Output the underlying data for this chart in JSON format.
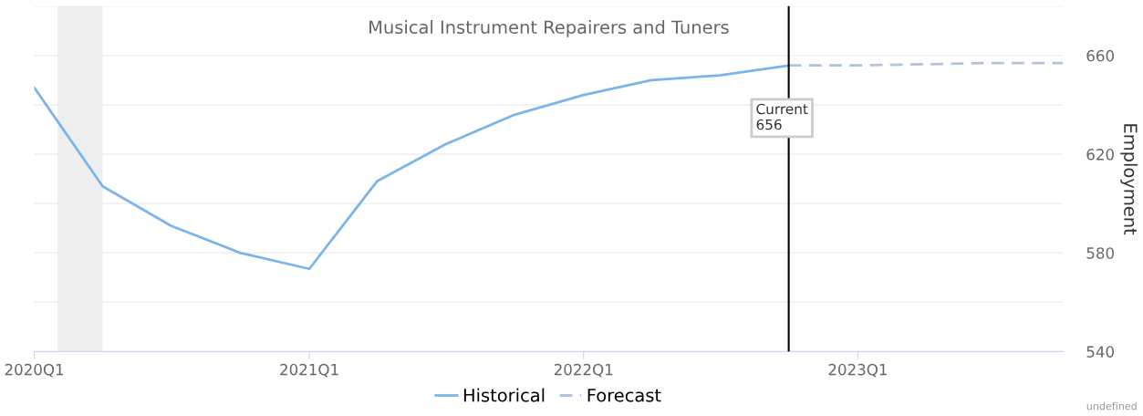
{
  "chart_data": {
    "type": "line",
    "title": "Musical Instrument Repairers and Tuners",
    "ylabel": "Employment",
    "series": [
      {
        "name": "Historical",
        "color": "#7cb5ec",
        "line_style": "solid",
        "x": [
          "2020-01-01",
          "2020-04-01",
          "2020-07-01",
          "2020-10-01",
          "2021-01-01",
          "2021-04-01",
          "2021-07-01",
          "2021-10-01",
          "2022-01-01",
          "2022-04-01",
          "2022-07-01",
          "2022-10-01"
        ],
        "values": [
          647,
          607,
          591,
          580,
          573.5,
          609,
          624,
          636,
          644,
          650,
          652,
          656
        ]
      },
      {
        "name": "Forecast",
        "color": "#b0c4de",
        "line_style": "dashed",
        "x": [
          "2022-10-01",
          "2023-01-01",
          "2023-04-01",
          "2023-07-01",
          "2023-10-01"
        ],
        "values": [
          656,
          656,
          656.5,
          657,
          657
        ]
      }
    ],
    "xlim": [
      "2020-01-01",
      "2023-10-01"
    ],
    "xticks": [
      {
        "value": "2020-01-01",
        "label": "2020Q1"
      },
      {
        "value": "2021-01-01",
        "label": "2021Q1"
      },
      {
        "value": "2022-01-01",
        "label": "2022Q1"
      },
      {
        "value": "2023-01-01",
        "label": "2023Q1"
      }
    ],
    "ylim": [
      540,
      680
    ],
    "yticks": [
      540,
      {
        "value": 560,
        "label": null
      },
      580,
      {
        "value": 600,
        "label": null
      },
      620,
      {
        "value": 640,
        "label": null
      },
      660,
      {
        "value": 680,
        "label": null
      }
    ],
    "bands": [
      {
        "axis": "x",
        "from": "2020-02-01",
        "to": "2020-04-01",
        "color": "#eeeeee"
      }
    ],
    "ref_lines": [
      {
        "axis": "x",
        "value": "2022-10-01",
        "color": "#000000"
      }
    ],
    "annotations": [
      {
        "text": "Current\n656",
        "x": "2022-10-01",
        "y": 656
      },
      "undefined"
    ],
    "grid": "y",
    "legend": "bottom",
    "marker": "none"
  }
}
